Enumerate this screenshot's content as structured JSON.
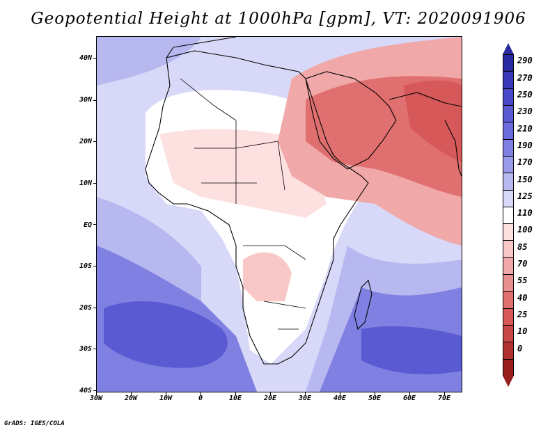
{
  "title": "Geopotential Height at 1000hPa [gpm], VT: 2020091906",
  "credit": "GrADS: IGES/COLA",
  "lat_labels": [
    "40N",
    "30N",
    "20N",
    "10N",
    "EQ",
    "10S",
    "20S",
    "30S",
    "40S"
  ],
  "lon_labels": [
    "30W",
    "20W",
    "10W",
    "0",
    "10E",
    "20E",
    "30E",
    "40E",
    "50E",
    "60E",
    "70E"
  ],
  "colorbar": {
    "labels": [
      "290",
      "270",
      "250",
      "230",
      "210",
      "190",
      "170",
      "150",
      "125",
      "110",
      "100",
      "85",
      "70",
      "55",
      "40",
      "25",
      "10",
      "0"
    ],
    "colors": [
      "#2a2aa0",
      "#3838b8",
      "#4848c8",
      "#5a5ad2",
      "#6c6cdc",
      "#8080e2",
      "#9a9aea",
      "#b8b8f0",
      "#d8d8f8",
      "#ffffff",
      "#fde0e0",
      "#f8c8c8",
      "#f0a8a8",
      "#e89090",
      "#e07070",
      "#d65858",
      "#c84848",
      "#b03030",
      "#981e1e"
    ]
  },
  "map": {
    "colors": {
      "deep_blue": "#5a5ad2",
      "mid_blue": "#8080e2",
      "light_blue": "#b8b8f0",
      "pale_blue": "#d8d8f8",
      "white": "#ffffff",
      "pale_pink": "#fde0e0",
      "pink": "#f0a8a8",
      "red": "#e07070",
      "deep_red": "#d65858"
    }
  }
}
